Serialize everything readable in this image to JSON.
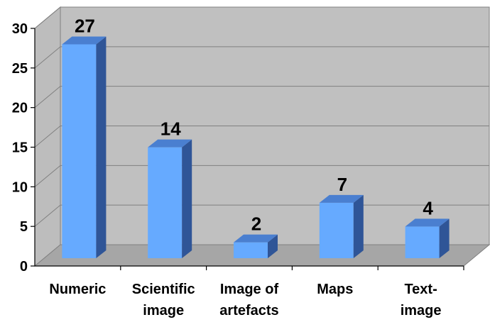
{
  "chart_data": {
    "type": "bar",
    "categories": [
      [
        "Numeric"
      ],
      [
        "Scientific",
        "image"
      ],
      [
        "Image of",
        "artefacts"
      ],
      [
        "Maps"
      ],
      [
        "Text-",
        "image"
      ]
    ],
    "values": [
      27,
      14,
      2,
      7,
      4
    ],
    "data_labels": [
      "27",
      "14",
      "2",
      "7",
      "4"
    ],
    "y_ticks": [
      "0",
      "5",
      "10",
      "15",
      "20",
      "25",
      "30"
    ],
    "ylim": [
      0,
      30
    ],
    "grid": true,
    "legend": "none",
    "title": "",
    "xlabel": "",
    "ylabel": "",
    "style": "3d-column"
  },
  "colors": {
    "bar_front": "#66AAFF",
    "bar_side": "#2F5597",
    "bar_top": "#4A7FD0",
    "back_wall": "#C0C0C0",
    "floor": "#A6A6A6",
    "side_wall": "#BDBDBD",
    "grid": "#808080"
  }
}
